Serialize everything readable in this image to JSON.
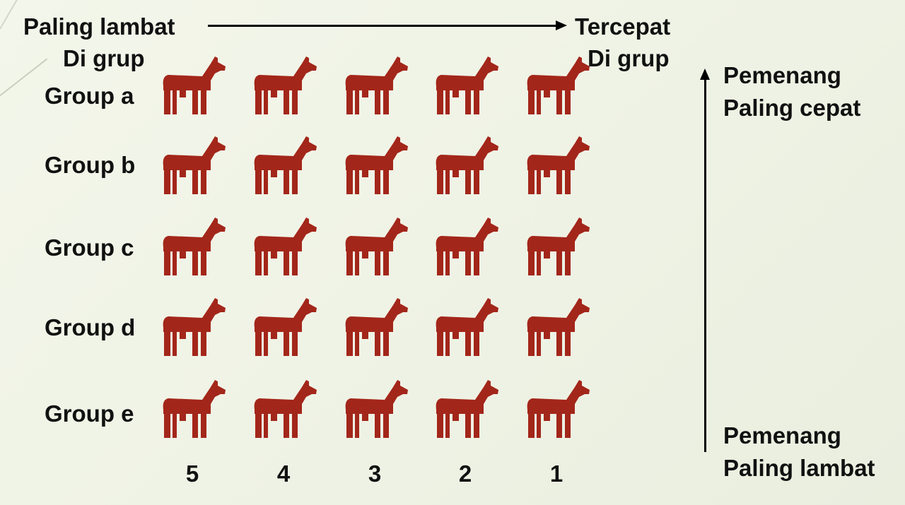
{
  "top_left_label": {
    "line1": "Paling lambat",
    "line2": "Di grup"
  },
  "top_right_label": {
    "line1": "Tercepat",
    "line2": "Di grup"
  },
  "right_top_label": {
    "line1": "Pemenang",
    "line2": "Paling cepat"
  },
  "right_bottom_label": {
    "line1": "Pemenang",
    "line2": "Paling lambat"
  },
  "groups": [
    "Group a",
    "Group b",
    "Group c",
    "Group d",
    "Group e"
  ],
  "ranks": [
    "5",
    "4",
    "3",
    "2",
    "1"
  ],
  "horses_per_group": 5,
  "icons": {
    "horse": "horse-icon"
  },
  "colors": {
    "horse": "#a3261a",
    "text": "#111111",
    "arrow": "#000000",
    "background": "#f0f4e6"
  }
}
